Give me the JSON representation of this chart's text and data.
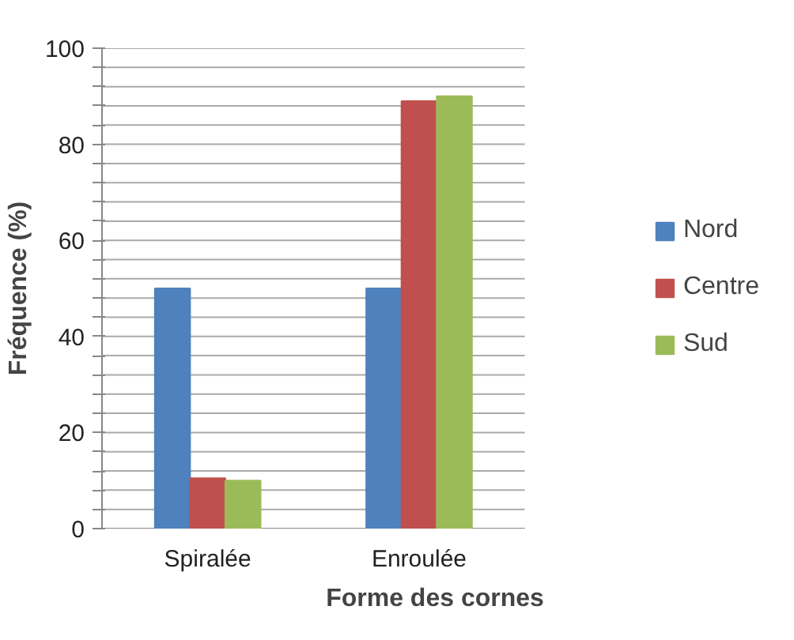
{
  "chart_data": {
    "type": "bar",
    "xlabel": "Forme des cornes",
    "ylabel": "Fréquence (%)",
    "categories": [
      "Spiralée",
      "Enroulée"
    ],
    "series": [
      {
        "name": "Nord",
        "color": "#4f81bd",
        "values": [
          50,
          50
        ]
      },
      {
        "name": "Centre",
        "color": "#c0504d",
        "values": [
          10.5,
          89
        ]
      },
      {
        "name": "Sud",
        "color": "#9bbb59",
        "values": [
          10,
          90
        ]
      }
    ],
    "ylim": [
      0,
      100
    ],
    "yticks": [
      0,
      {
        "value": 4,
        "label": null
      },
      {
        "value": 8,
        "label": null
      },
      {
        "value": 12,
        "label": null
      },
      {
        "value": 16,
        "label": null
      },
      20,
      {
        "value": 24,
        "label": null
      },
      {
        "value": 28,
        "label": null
      },
      {
        "value": 32,
        "label": null
      },
      {
        "value": 36,
        "label": null
      },
      40,
      {
        "value": 44,
        "label": null
      },
      {
        "value": 48,
        "label": null
      },
      {
        "value": 52,
        "label": null
      },
      {
        "value": 56,
        "label": null
      },
      60,
      {
        "value": 64,
        "label": null
      },
      {
        "value": 68,
        "label": null
      },
      {
        "value": 72,
        "label": null
      },
      {
        "value": 76,
        "label": null
      },
      80,
      {
        "value": 84,
        "label": null
      },
      {
        "value": 88,
        "label": null
      },
      {
        "value": 92,
        "label": null
      },
      {
        "value": 96,
        "label": null
      },
      100
    ],
    "grid": "y",
    "legend": "right"
  }
}
